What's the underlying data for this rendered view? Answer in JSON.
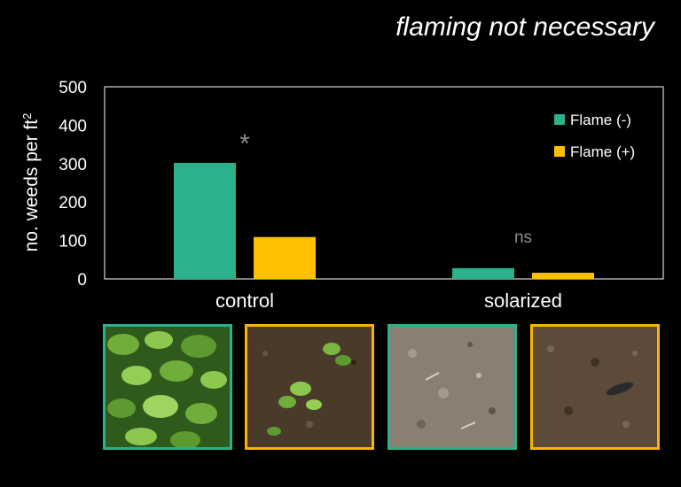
{
  "headline": "flaming not necessary",
  "colors": {
    "flame_minus": "#2bb18c",
    "flame_plus": "#ffc000",
    "annotation": "#8c8c8c",
    "background": "#000000"
  },
  "chart_data": {
    "type": "bar",
    "title": "",
    "ylabel_main": "no. weeds per ft",
    "ylabel_sup": "2",
    "xlabel": "",
    "categories": [
      "control",
      "solarized"
    ],
    "series": [
      {
        "name": "Flame (-)",
        "values": [
          302,
          28
        ]
      },
      {
        "name": "Flame (+)",
        "values": [
          109,
          16
        ]
      }
    ],
    "ylim": [
      0,
      500
    ],
    "yticks": [
      0,
      100,
      200,
      300,
      400,
      500
    ],
    "grid": false,
    "legend_position": "top-right",
    "annotations": [
      {
        "category": "control",
        "text": "*"
      },
      {
        "category": "solarized",
        "text": "ns"
      }
    ]
  },
  "photos": [
    {
      "name": "control flame minus",
      "subject": "dense green weeds"
    },
    {
      "name": "control flame plus",
      "subject": "sparse weeds on soil"
    },
    {
      "name": "solarized flame minus",
      "subject": "bare pale soil"
    },
    {
      "name": "solarized flame plus",
      "subject": "bare brown soil"
    }
  ]
}
